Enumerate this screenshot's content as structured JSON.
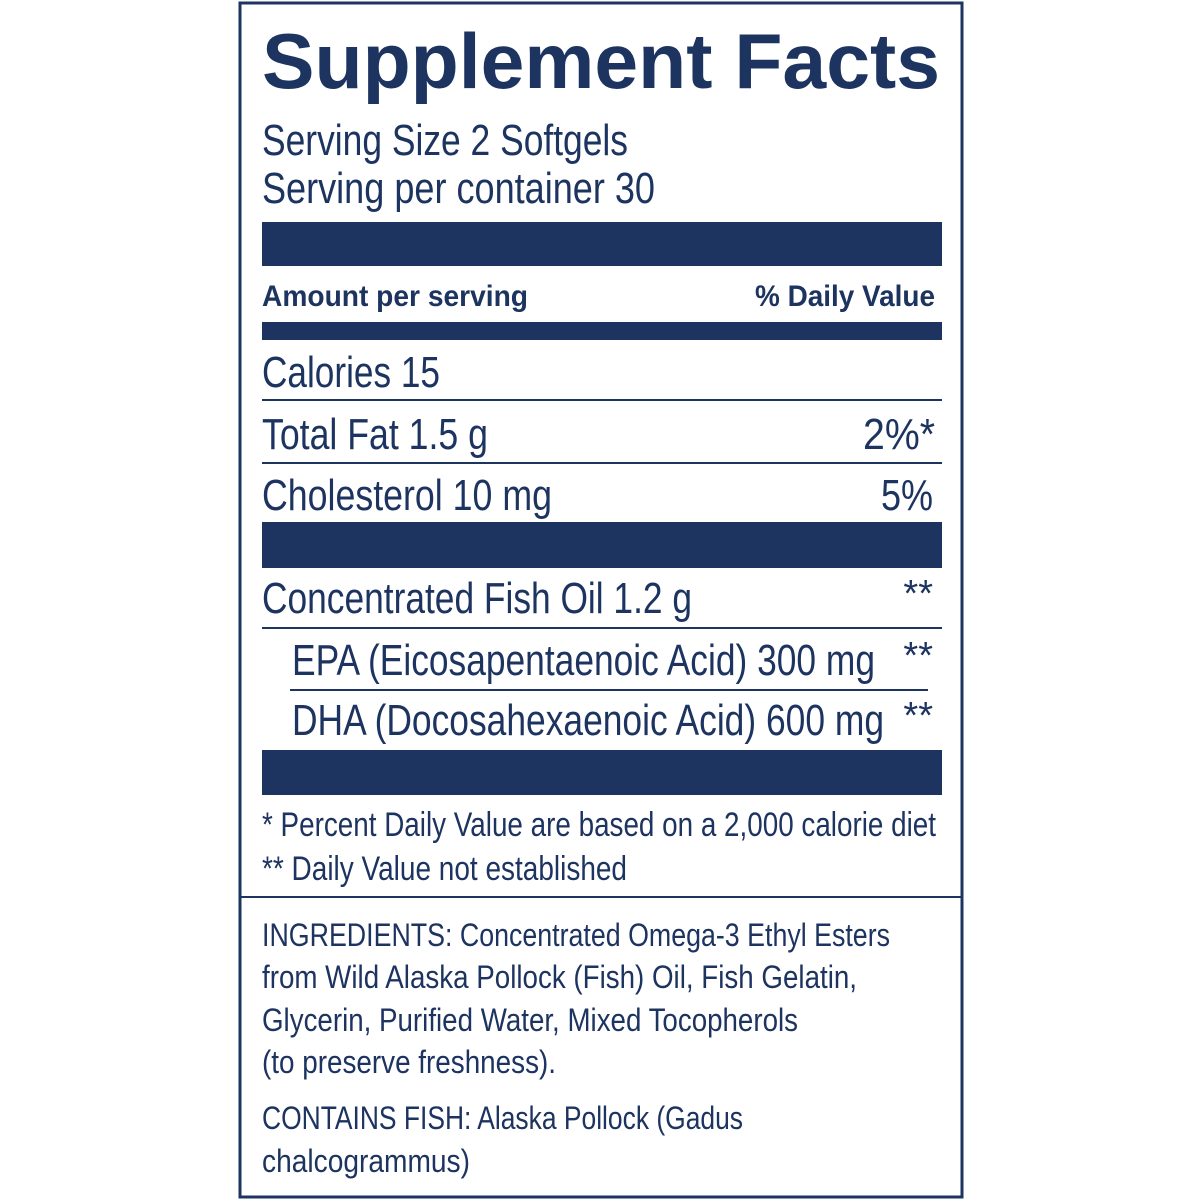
{
  "title": "Supplement Facts",
  "serving": [
    "Serving Size 2 Softgels",
    "Serving per container 30"
  ],
  "header": {
    "amount": "Amount per serving",
    "daily_value": "% Daily Value"
  },
  "rows": [
    {
      "label": "Calories 15"
    },
    {
      "label": "Total Fat 1.5 g",
      "dv": "2%*"
    },
    {
      "label": "Cholesterol 10 mg",
      "dv": "5%"
    },
    {
      "label": "Concentrated Fish Oil 1.2 g",
      "dv": "**"
    },
    {
      "label": "EPA (Eicosapentaenoic Acid) 300 mg",
      "dv": "**"
    },
    {
      "label": "DHA (Docosahexaenoic Acid) 600 mg",
      "dv": "**"
    }
  ],
  "footnotes": [
    "* Percent Daily Value are based on a 2,000 calorie diet",
    "** Daily Value not established"
  ],
  "ingredients": [
    "INGREDIENTS: Concentrated Omega-3 Ethyl Esters",
    "from Wild Alaska Pollock (Fish) Oil, Fish Gelatin,",
    "Glycerin, Purified Water, Mixed Tocopherols",
    "(to preserve freshness)."
  ],
  "contains": [
    "CONTAINS FISH: Alaska Pollock (Gadus",
    "chalcogrammus)"
  ]
}
